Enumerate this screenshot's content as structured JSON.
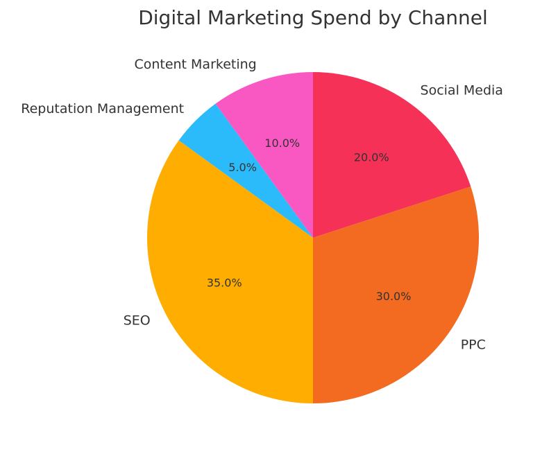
{
  "chart_data": {
    "type": "pie",
    "title": "Digital Marketing Spend by Channel",
    "start_angle_deg": 90,
    "direction": "clockwise",
    "slices": [
      {
        "label": "Social Media",
        "value": 20.0,
        "pct_label": "20.0%",
        "color": "#F53157"
      },
      {
        "label": "PPC",
        "value": 30.0,
        "pct_label": "30.0%",
        "color": "#F36A21"
      },
      {
        "label": "SEO",
        "value": 35.0,
        "pct_label": "35.0%",
        "color": "#FFAD00"
      },
      {
        "label": "Reputation Management",
        "value": 5.0,
        "pct_label": "5.0%",
        "color": "#2BBBFA"
      },
      {
        "label": "Content Marketing",
        "value": 10.0,
        "pct_label": "10.0%",
        "color": "#F957C1"
      }
    ]
  }
}
